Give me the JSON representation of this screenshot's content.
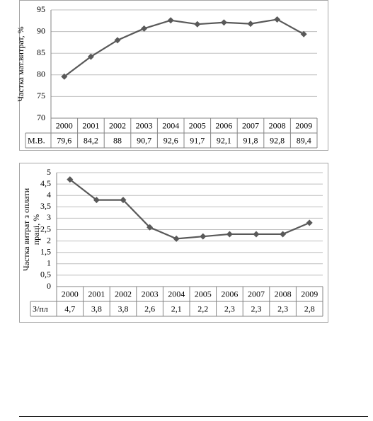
{
  "chart_data": [
    {
      "type": "line",
      "y_label": [
        "Частка мат.витрат, %"
      ],
      "categories": [
        "2000",
        "2001",
        "2002",
        "2003",
        "2004",
        "2005",
        "2006",
        "2007",
        "2008",
        "2009"
      ],
      "series": [
        {
          "name": "М.В.",
          "color": "#595959",
          "values": [
            79.6,
            84.2,
            88,
            90.7,
            92.6,
            91.7,
            92.1,
            91.8,
            92.8,
            89.4
          ],
          "value_labels": [
            "79,6",
            "84,2",
            "88",
            "90,7",
            "92,6",
            "91,7",
            "92,1",
            "91,8",
            "92,8",
            "89,4"
          ]
        }
      ],
      "ylim": [
        70,
        95
      ],
      "yticks": [
        70,
        75,
        80,
        85,
        90,
        95
      ],
      "grid": true
    },
    {
      "type": "line",
      "y_label": [
        "Частка витрат з оплати",
        "праці, %"
      ],
      "categories": [
        "2000",
        "2001",
        "2002",
        "2003",
        "2004",
        "2005",
        "2006",
        "2007",
        "2008",
        "2009"
      ],
      "series": [
        {
          "name": "З/пл",
          "color": "#595959",
          "values": [
            4.7,
            3.8,
            3.8,
            2.6,
            2.1,
            2.2,
            2.3,
            2.3,
            2.3,
            2.8
          ],
          "value_labels": [
            "4,7",
            "3,8",
            "3,8",
            "2,6",
            "2,1",
            "2,2",
            "2,3",
            "2,3",
            "2,3",
            "2,8"
          ]
        }
      ],
      "ylim": [
        0,
        5
      ],
      "yticks": [
        0,
        {
          "value": 0.5,
          "label": "0,5"
        },
        1,
        {
          "value": 1.5,
          "label": "1,5"
        },
        2,
        {
          "value": 2.5,
          "label": "2,5"
        },
        3,
        {
          "value": 3.5,
          "label": "3,5"
        },
        4,
        {
          "value": 4.5,
          "label": "4,5"
        },
        5
      ],
      "grid": true
    }
  ]
}
